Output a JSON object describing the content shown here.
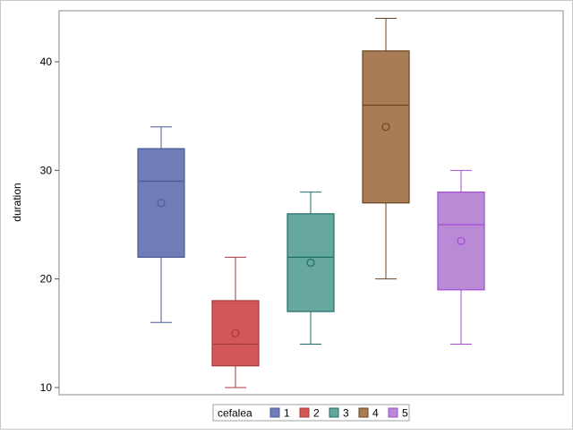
{
  "chart_data": {
    "type": "boxplot",
    "title": "",
    "xlabel": "",
    "ylabel": "duration",
    "ylim": [
      9,
      45
    ],
    "yticks": [
      10,
      20,
      30,
      40
    ],
    "grid": false,
    "legend": {
      "title": "cefalea",
      "position": "bottom-center"
    },
    "series": [
      {
        "name": "1",
        "color": "#6f7db7",
        "stroke": "#4a5a96",
        "min": 16,
        "q1": 22,
        "median": 29,
        "q3": 32,
        "max": 34,
        "mean": 27
      },
      {
        "name": "2",
        "color": "#d25858",
        "stroke": "#a83a3a",
        "min": 10,
        "q1": 12,
        "median": 14,
        "q3": 18,
        "max": 22,
        "mean": 15
      },
      {
        "name": "3",
        "color": "#66a89e",
        "stroke": "#1f6e68",
        "min": 14,
        "q1": 17,
        "median": 22,
        "q3": 26,
        "max": 28,
        "mean": 21.5
      },
      {
        "name": "4",
        "color": "#a87c55",
        "stroke": "#6a4520",
        "min": 20,
        "q1": 27,
        "median": 36,
        "q3": 41,
        "max": 44,
        "mean": 34
      },
      {
        "name": "5",
        "color": "#b98bd7",
        "stroke": "#a44bd0",
        "min": 14,
        "q1": 19,
        "median": 25,
        "q3": 28,
        "max": 30,
        "mean": 23.5
      }
    ]
  }
}
